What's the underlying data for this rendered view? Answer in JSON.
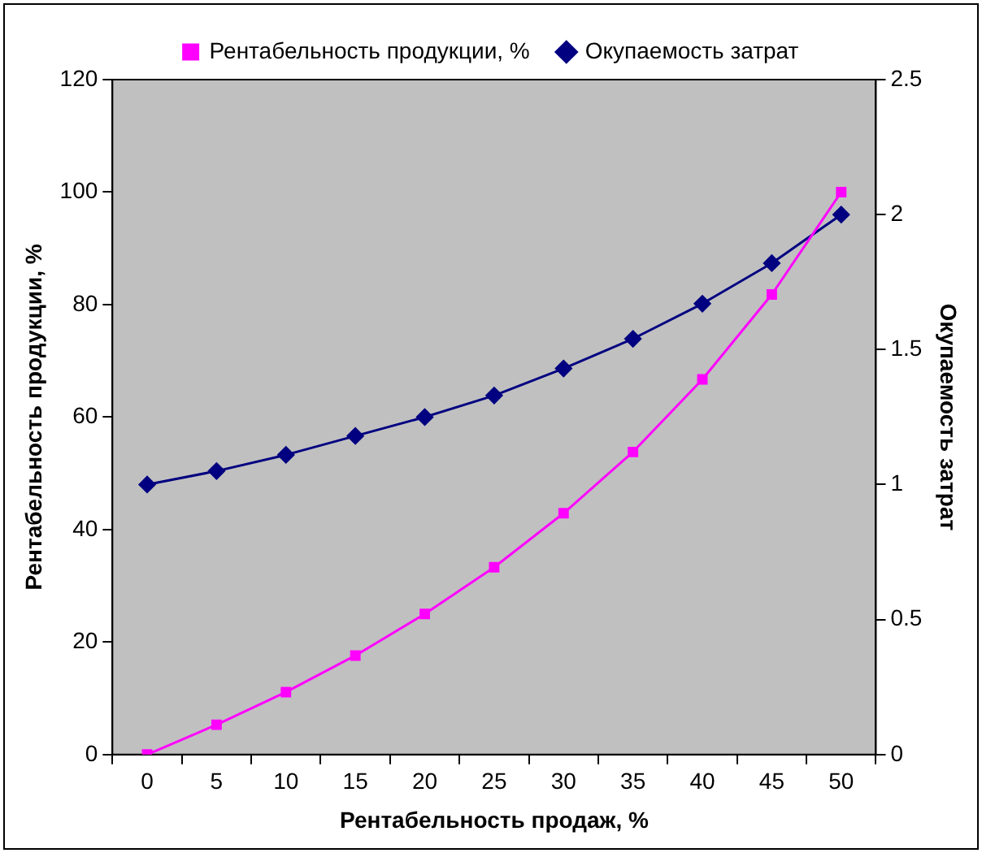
{
  "chart_data": {
    "type": "line",
    "xlabel": "Рентабельность продаж, %",
    "ylabel": "Рентабельность продукции, %",
    "y2label": "Окупаемость затрат",
    "categories": [
      "0",
      "5",
      "10",
      "15",
      "20",
      "25",
      "30",
      "35",
      "40",
      "45",
      "50"
    ],
    "series": [
      {
        "name": "Рентабельность продукции, %",
        "color": "#ff00ff",
        "marker": "square",
        "values": [
          0,
          5.3,
          11.1,
          17.6,
          25,
          33.3,
          42.9,
          53.8,
          66.7,
          81.8,
          100
        ]
      },
      {
        "name": "Окупаемость затрат",
        "color": "#000080",
        "marker": "diamond",
        "axis": "y2",
        "values": [
          1,
          1.05,
          1.11,
          1.18,
          1.25,
          1.33,
          1.43,
          1.54,
          1.67,
          1.82,
          2
        ]
      }
    ],
    "ylim": [
      0,
      120
    ],
    "yticks": [
      0,
      20,
      40,
      60,
      80,
      100,
      120
    ],
    "y2lim": [
      0,
      2.5
    ],
    "y2ticks": [
      0,
      0.5,
      1,
      1.5,
      2,
      2.5
    ],
    "grid": false,
    "legend": "top"
  }
}
